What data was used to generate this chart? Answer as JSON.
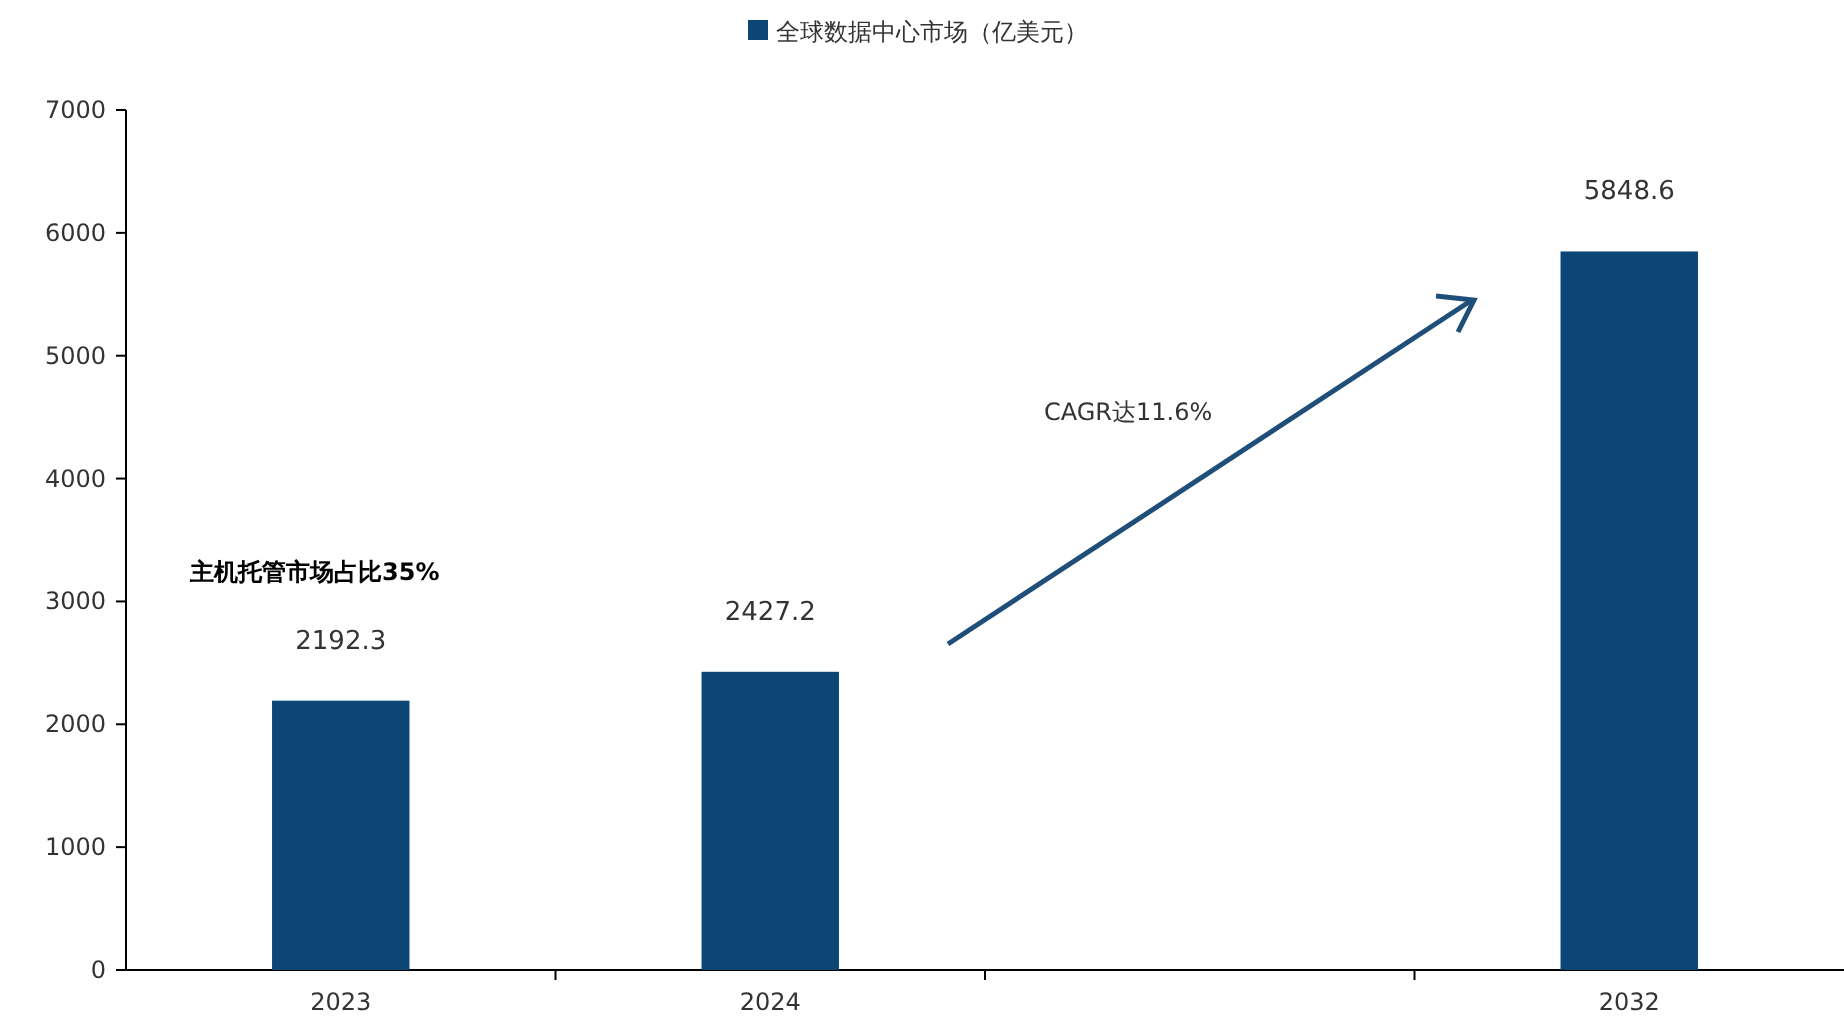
{
  "chart_data": {
    "type": "bar",
    "categories": [
      "2023",
      "2024",
      null,
      "2032"
    ],
    "series": [
      {
        "name": "全球数据中心市场（亿美元）",
        "color": "#0b4677",
        "values": [
          2192.3,
          2427.2,
          null,
          5848.6
        ]
      }
    ],
    "ylim": [
      0,
      7000
    ],
    "yticks": [
      0,
      1000,
      2000,
      3000,
      4000,
      5000,
      6000,
      7000
    ],
    "data_labels": true,
    "legend": "top",
    "grid": false,
    "annotations": [
      "主机托管市场占比35%",
      "CAGR达11.6%"
    ]
  }
}
